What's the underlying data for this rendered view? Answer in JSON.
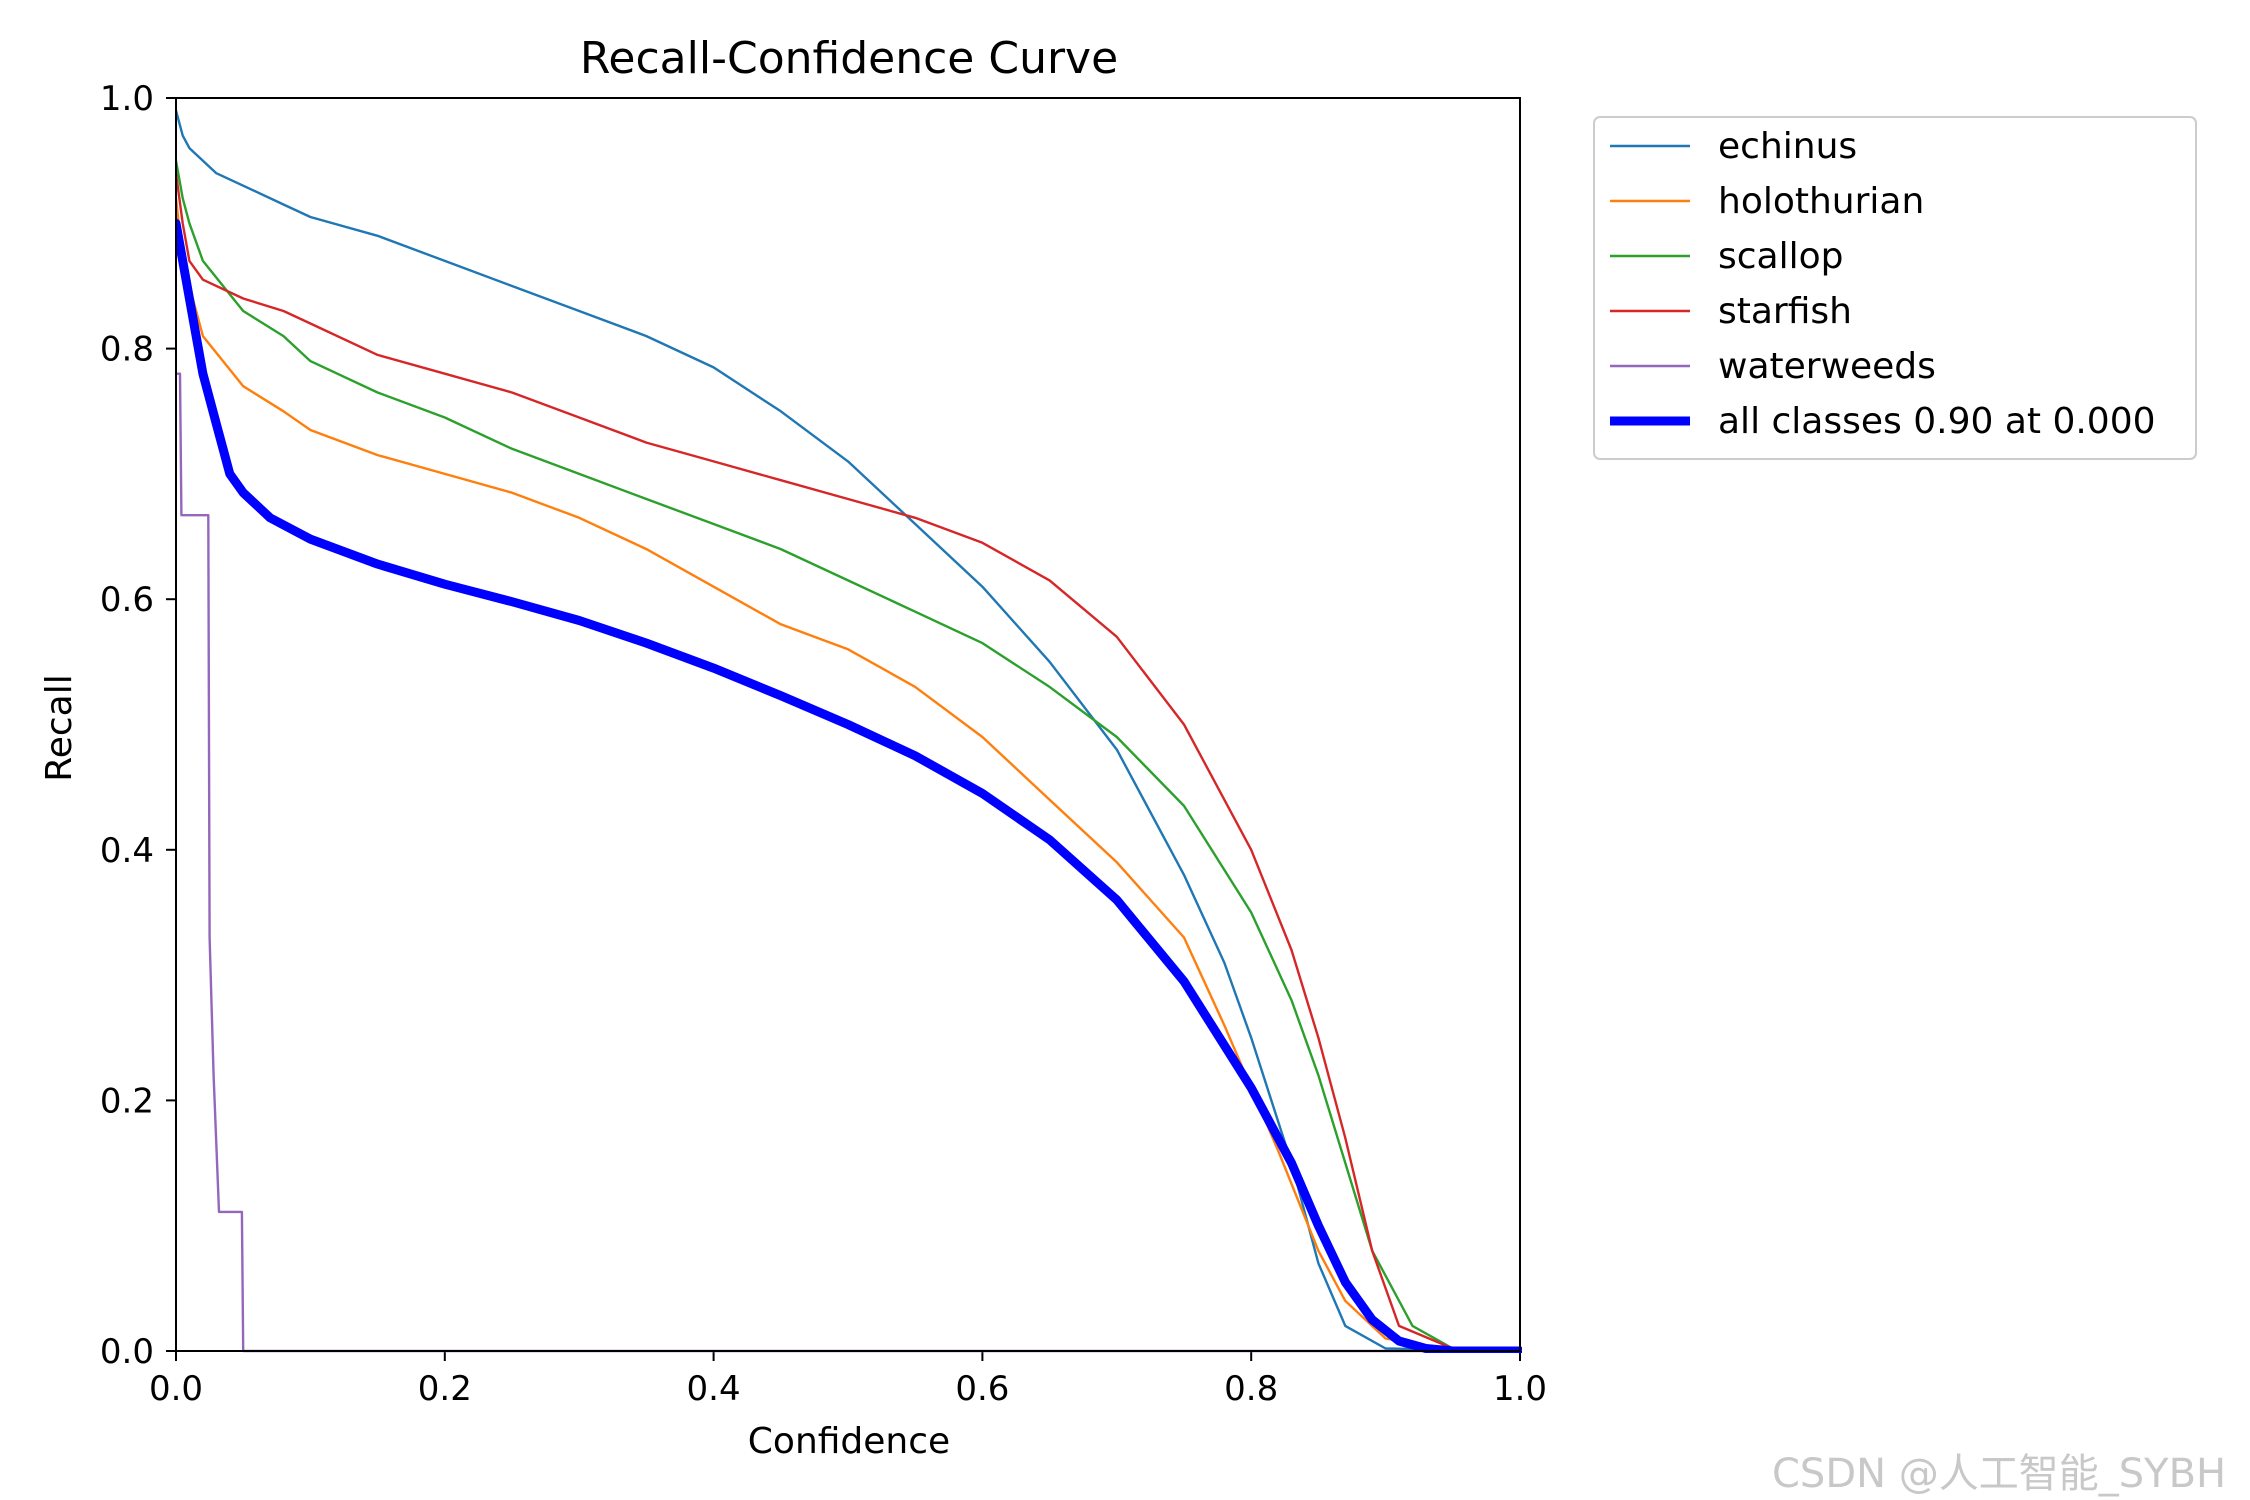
{
  "watermark": "CSDN @人工智能_SYBH",
  "chart_data": {
    "type": "line",
    "title": "Recall-Confidence Curve",
    "xlabel": "Confidence",
    "ylabel": "Recall",
    "xlim": [
      0,
      1
    ],
    "ylim": [
      0,
      1
    ],
    "xticks": [
      "0.0",
      "0.2",
      "0.4",
      "0.6",
      "0.8",
      "1.0"
    ],
    "yticks": [
      "0.0",
      "0.2",
      "0.4",
      "0.6",
      "0.8",
      "1.0"
    ],
    "grid": false,
    "legend_position": "outside-top-right",
    "series": [
      {
        "name": "echinus",
        "color": "#1f77b4",
        "width": "thin",
        "points": [
          [
            0.0,
            0.99
          ],
          [
            0.005,
            0.97
          ],
          [
            0.01,
            0.96
          ],
          [
            0.03,
            0.94
          ],
          [
            0.05,
            0.93
          ],
          [
            0.08,
            0.915
          ],
          [
            0.1,
            0.905
          ],
          [
            0.15,
            0.89
          ],
          [
            0.2,
            0.87
          ],
          [
            0.25,
            0.85
          ],
          [
            0.3,
            0.83
          ],
          [
            0.35,
            0.81
          ],
          [
            0.4,
            0.785
          ],
          [
            0.45,
            0.75
          ],
          [
            0.5,
            0.71
          ],
          [
            0.55,
            0.66
          ],
          [
            0.6,
            0.61
          ],
          [
            0.65,
            0.55
          ],
          [
            0.7,
            0.48
          ],
          [
            0.75,
            0.38
          ],
          [
            0.78,
            0.31
          ],
          [
            0.8,
            0.25
          ],
          [
            0.83,
            0.15
          ],
          [
            0.85,
            0.07
          ],
          [
            0.87,
            0.02
          ],
          [
            0.9,
            0.002
          ],
          [
            1.0,
            0.0
          ]
        ]
      },
      {
        "name": "holothurian",
        "color": "#ff7f0e",
        "width": "thin",
        "points": [
          [
            0.0,
            0.92
          ],
          [
            0.005,
            0.87
          ],
          [
            0.01,
            0.85
          ],
          [
            0.02,
            0.81
          ],
          [
            0.05,
            0.77
          ],
          [
            0.08,
            0.75
          ],
          [
            0.1,
            0.735
          ],
          [
            0.15,
            0.715
          ],
          [
            0.2,
            0.7
          ],
          [
            0.25,
            0.685
          ],
          [
            0.3,
            0.665
          ],
          [
            0.35,
            0.64
          ],
          [
            0.4,
            0.61
          ],
          [
            0.45,
            0.58
          ],
          [
            0.5,
            0.56
          ],
          [
            0.55,
            0.53
          ],
          [
            0.6,
            0.49
          ],
          [
            0.65,
            0.44
          ],
          [
            0.7,
            0.39
          ],
          [
            0.75,
            0.33
          ],
          [
            0.78,
            0.26
          ],
          [
            0.8,
            0.21
          ],
          [
            0.82,
            0.16
          ],
          [
            0.85,
            0.08
          ],
          [
            0.87,
            0.04
          ],
          [
            0.9,
            0.01
          ],
          [
            0.95,
            0.0
          ],
          [
            1.0,
            0.0
          ]
        ]
      },
      {
        "name": "scallop",
        "color": "#2ca02c",
        "width": "thin",
        "points": [
          [
            0.0,
            0.95
          ],
          [
            0.005,
            0.92
          ],
          [
            0.01,
            0.9
          ],
          [
            0.02,
            0.87
          ],
          [
            0.05,
            0.83
          ],
          [
            0.08,
            0.81
          ],
          [
            0.1,
            0.79
          ],
          [
            0.15,
            0.765
          ],
          [
            0.2,
            0.745
          ],
          [
            0.25,
            0.72
          ],
          [
            0.3,
            0.7
          ],
          [
            0.35,
            0.68
          ],
          [
            0.4,
            0.66
          ],
          [
            0.45,
            0.64
          ],
          [
            0.5,
            0.615
          ],
          [
            0.55,
            0.59
          ],
          [
            0.6,
            0.565
          ],
          [
            0.65,
            0.53
          ],
          [
            0.7,
            0.49
          ],
          [
            0.75,
            0.435
          ],
          [
            0.8,
            0.35
          ],
          [
            0.83,
            0.28
          ],
          [
            0.85,
            0.22
          ],
          [
            0.87,
            0.15
          ],
          [
            0.89,
            0.08
          ],
          [
            0.92,
            0.02
          ],
          [
            0.95,
            0.002
          ],
          [
            1.0,
            0.0
          ]
        ]
      },
      {
        "name": "starfish",
        "color": "#d62728",
        "width": "thin",
        "points": [
          [
            0.0,
            0.94
          ],
          [
            0.005,
            0.9
          ],
          [
            0.01,
            0.87
          ],
          [
            0.02,
            0.855
          ],
          [
            0.05,
            0.84
          ],
          [
            0.08,
            0.83
          ],
          [
            0.1,
            0.82
          ],
          [
            0.15,
            0.795
          ],
          [
            0.2,
            0.78
          ],
          [
            0.25,
            0.765
          ],
          [
            0.3,
            0.745
          ],
          [
            0.35,
            0.725
          ],
          [
            0.4,
            0.71
          ],
          [
            0.45,
            0.695
          ],
          [
            0.5,
            0.68
          ],
          [
            0.55,
            0.665
          ],
          [
            0.6,
            0.645
          ],
          [
            0.65,
            0.615
          ],
          [
            0.7,
            0.57
          ],
          [
            0.75,
            0.5
          ],
          [
            0.8,
            0.4
          ],
          [
            0.83,
            0.32
          ],
          [
            0.85,
            0.25
          ],
          [
            0.87,
            0.17
          ],
          [
            0.89,
            0.08
          ],
          [
            0.91,
            0.02
          ],
          [
            0.95,
            0.002
          ],
          [
            1.0,
            0.0
          ]
        ]
      },
      {
        "name": "waterweeds",
        "color": "#9467bd",
        "width": "thin",
        "points": [
          [
            0.0,
            0.78
          ],
          [
            0.003,
            0.78
          ],
          [
            0.004,
            0.667
          ],
          [
            0.024,
            0.667
          ],
          [
            0.025,
            0.33
          ],
          [
            0.028,
            0.22
          ],
          [
            0.032,
            0.111
          ],
          [
            0.049,
            0.111
          ],
          [
            0.05,
            0.0
          ],
          [
            1.0,
            0.0
          ]
        ]
      },
      {
        "name": "all classes 0.90 at 0.000",
        "color": "#0000ff",
        "width": "thick",
        "points": [
          [
            0.0,
            0.9
          ],
          [
            0.01,
            0.84
          ],
          [
            0.02,
            0.78
          ],
          [
            0.03,
            0.74
          ],
          [
            0.04,
            0.7
          ],
          [
            0.05,
            0.685
          ],
          [
            0.07,
            0.665
          ],
          [
            0.1,
            0.648
          ],
          [
            0.15,
            0.628
          ],
          [
            0.2,
            0.612
          ],
          [
            0.25,
            0.598
          ],
          [
            0.3,
            0.583
          ],
          [
            0.35,
            0.565
          ],
          [
            0.4,
            0.545
          ],
          [
            0.45,
            0.523
          ],
          [
            0.5,
            0.5
          ],
          [
            0.55,
            0.475
          ],
          [
            0.6,
            0.445
          ],
          [
            0.65,
            0.408
          ],
          [
            0.7,
            0.36
          ],
          [
            0.75,
            0.295
          ],
          [
            0.8,
            0.21
          ],
          [
            0.83,
            0.15
          ],
          [
            0.85,
            0.1
          ],
          [
            0.87,
            0.055
          ],
          [
            0.89,
            0.025
          ],
          [
            0.91,
            0.008
          ],
          [
            0.93,
            0.002
          ],
          [
            0.95,
            0.0
          ],
          [
            1.0,
            0.0
          ]
        ]
      }
    ]
  }
}
